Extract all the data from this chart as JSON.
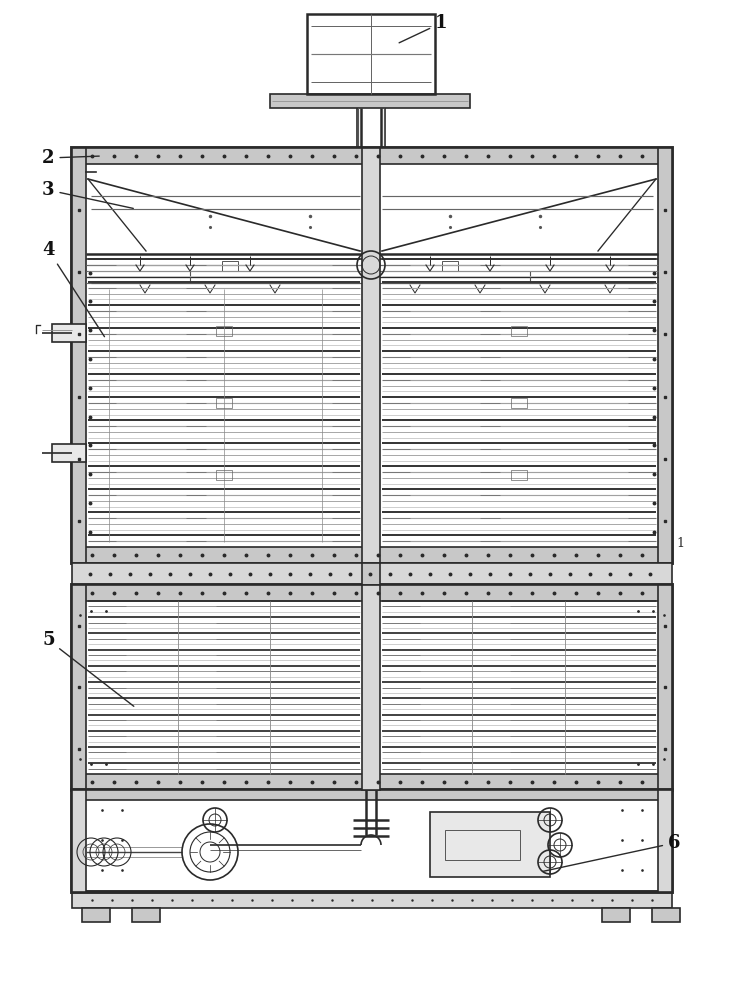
{
  "bg_color": "#ffffff",
  "lc": "#2a2a2a",
  "lc_thin": "#555555",
  "gray_fill": "#c8c8c8",
  "gray_fill2": "#d8d8d8",
  "gray_fill3": "#e8e8e8",
  "coil_dark": "#555555",
  "coil_mid": "#888888",
  "coil_light": "#bbbbbb",
  "fig_width": 7.46,
  "fig_height": 10.0,
  "dpi": 100,
  "labels": [
    "1",
    "2",
    "3",
    "4",
    "5",
    "6"
  ]
}
